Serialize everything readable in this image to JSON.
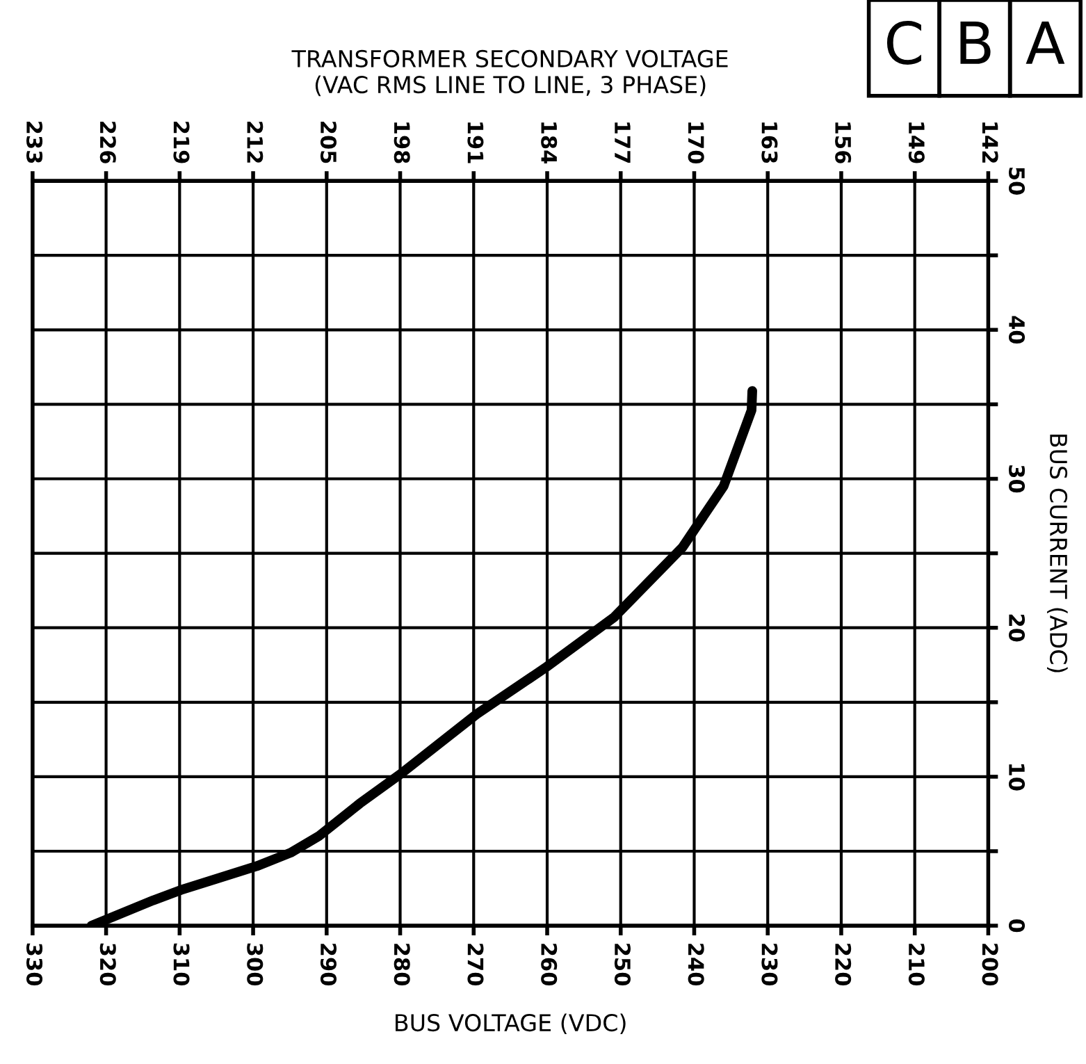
{
  "chart_data": {
    "type": "line",
    "xlabel": "BUS VOLTAGE (VDC)",
    "ylabel": "BUS CURRENT (ADC)",
    "x2label": "TRANSFORMER SECONDARY VOLTAGE\n(VAC RMS LINE TO LINE, 3 PHASE)",
    "annotations": [
      "C",
      "B",
      "A"
    ],
    "xlim": [
      330,
      200
    ],
    "xticks": [
      330,
      320,
      310,
      300,
      290,
      280,
      270,
      260,
      250,
      240,
      230,
      220,
      210,
      200
    ],
    "x2lim": [
      233,
      142
    ],
    "x2ticks": [
      233,
      226,
      219,
      212,
      205,
      198,
      191,
      184,
      177,
      170,
      163,
      156,
      149,
      142
    ],
    "ylim": [
      0,
      50
    ],
    "yticks": [
      0,
      {
        "value": 5,
        "label": null
      },
      10,
      {
        "value": 15,
        "label": null
      },
      20,
      {
        "value": 25,
        "label": null
      },
      30,
      {
        "value": 35,
        "label": null
      },
      40,
      {
        "value": 45,
        "label": null
      },
      50
    ],
    "grid": true,
    "marker": "none",
    "line_style": "solid",
    "series": [
      {
        "color": "#000000",
        "x": [
          322,
          313.6,
          309.8,
          299.5,
          294.9,
          291.1,
          285.5,
          279.9,
          269.6,
          260.3,
          250.9,
          241.6,
          236.0,
          232.2,
          232.1
        ],
        "values": [
          0,
          1.7,
          2.4,
          4.0,
          4.9,
          6.0,
          8.2,
          10.2,
          14.2,
          17.3,
          20.7,
          25.4,
          29.5,
          34.6,
          35.9
        ]
      }
    ]
  }
}
